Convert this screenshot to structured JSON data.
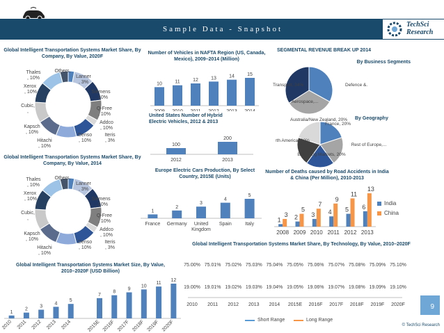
{
  "header": {
    "title": "Sample Data - Snapshot",
    "logo_line1": "TechSci",
    "logo_line2": "Research",
    "page_number": "9",
    "copyright": "© TechSci Research"
  },
  "colors": {
    "header": "#1a4a6b",
    "blue": "#4f81bd",
    "orange": "#f79646",
    "gray": "#a5a5a5",
    "navy": "#1f3864",
    "gold": "#ffc000",
    "steel": "#5b9bd5"
  },
  "titles": {
    "donut2020": "Global Intelligent Transportation Systems Market Share, By Company, By Value, 2020F",
    "donut2014": "Global Intelligent Transportation Systems Market Share, By Company, By Value, 2014",
    "gmarket": "Global Intelligent Transportation Systems Market Size, By Value, 2010–2020F (USD Billion)",
    "nafta": "Number of Vehicles in NAFTA Region (US, Canada, Mexico), 2009–2014 (Million)",
    "hybrid": "United States Number of Hybrid Electric Vehicles, 2012 & 2013",
    "europe": "Europe Electric Cars Production, By Select Country, 2015E (Units)",
    "seg": "SEGMENTAL REVENUE BREAK UP 2014",
    "segBiz": "By Business Segments",
    "segGeo": "By Geography",
    "deaths": "Number of Deaths caused by Road Accidents in India & China (Per Million), 2010-2013",
    "tech": "Global Intelligent Transportation Systems Market Share, By Technology, By Value, 2010–2020F"
  },
  "chart_data": [
    {
      "id": "donut2020",
      "type": "pie",
      "labels": [
        "Lanner, 3%",
        "Siemens , 10%",
        "Q-Free, 10%",
        "Addco, 10%",
        "Iteris, 3%",
        "Denso, 10%",
        "Hitachi, 10%",
        "Kapsch, 10%",
        "Cubic,",
        "Xerox , 10%",
        "Thales, 10%",
        "Others,"
      ],
      "values": [
        3,
        10,
        10,
        10,
        3,
        10,
        10,
        10,
        10,
        10,
        10,
        4
      ]
    },
    {
      "id": "donut2014",
      "type": "pie",
      "labels": [
        "Lanner, 3%",
        "Siemens , 10%",
        "Q-Free, 10%",
        "Addco, 10%",
        "Iteris, 3%",
        "Denso, 10%",
        "Hitachi, 10%",
        "Kapsch, 10%",
        "Cubic,",
        "Xerox , 10%",
        "Thales, 10%",
        "Others,"
      ],
      "values": [
        3,
        10,
        10,
        10,
        3,
        10,
        10,
        10,
        10,
        10,
        10,
        4
      ]
    },
    {
      "id": "gmarket",
      "type": "bar",
      "categories": [
        "2010",
        "2011",
        "2012",
        "2013",
        "2014",
        "2015E",
        "2016F",
        "2017F",
        "2018F",
        "2019F",
        "2020F"
      ],
      "values": [
        1,
        2,
        3,
        4,
        5,
        7,
        8,
        9,
        10,
        11,
        12
      ]
    },
    {
      "id": "nafta",
      "type": "bar",
      "categories": [
        "2009",
        "2010",
        "2011",
        "2012",
        "2013",
        "2014"
      ],
      "values": [
        10,
        11,
        12,
        13,
        14,
        15
      ]
    },
    {
      "id": "hybrid",
      "type": "bar",
      "categories": [
        "2012",
        "2013"
      ],
      "values": [
        100,
        200
      ]
    },
    {
      "id": "europe",
      "type": "bar",
      "categories": [
        "France",
        "Germany",
        "United Kingdom",
        "Spain",
        "Italy"
      ],
      "values": [
        1,
        2,
        3,
        4,
        5
      ]
    },
    {
      "id": "segBiz",
      "type": "pie",
      "labels": [
        "Defence &...",
        "Aerospace,...",
        "Transport, 34%"
      ],
      "values": [
        33,
        33,
        34
      ]
    },
    {
      "id": "segGeo",
      "type": "pie",
      "labels": [
        "France, 20%",
        "Rest of Europe,...",
        "Emerging Markets, 20%",
        "North America, 20%",
        "Australia/New Zealand, 20%"
      ],
      "values": [
        20,
        20,
        20,
        20,
        20
      ]
    },
    {
      "id": "deaths",
      "type": "bar",
      "categories": [
        "2008",
        "2009",
        "2010",
        "2011",
        "2012",
        "2013"
      ],
      "series": [
        {
          "name": "India",
          "values": [
            1,
            2,
            3,
            4,
            5,
            6
          ]
        },
        {
          "name": "China",
          "values": [
            3,
            5,
            7,
            9,
            11,
            13
          ]
        }
      ]
    },
    {
      "id": "tech",
      "type": "line",
      "categories": [
        "2010",
        "2011",
        "2012",
        "2013",
        "2014",
        "2015E",
        "2016F",
        "2017F",
        "2018F",
        "2019F",
        "2020F"
      ],
      "series": [
        {
          "name": "Short Range",
          "values": [
            19.0,
            19.01,
            19.02,
            19.03,
            19.04,
            19.05,
            19.06,
            19.07,
            19.08,
            19.09,
            19.1
          ]
        },
        {
          "name": "Long Range",
          "values": [
            75.0,
            75.01,
            75.02,
            75.03,
            75.04,
            75.05,
            75.06,
            75.07,
            75.08,
            75.09,
            75.1
          ]
        }
      ],
      "value_suffix": "%"
    }
  ]
}
